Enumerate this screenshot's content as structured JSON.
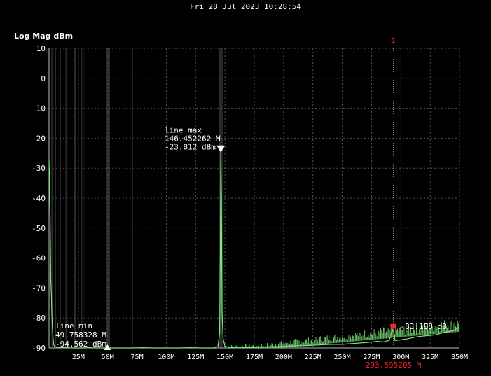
{
  "header": {
    "timestamp": "Fri 28 Jul 2023 10:28:54"
  },
  "chart_data": {
    "type": "line",
    "ylabel": "Log Mag dBm",
    "xlim": [
      0,
      350
    ],
    "ylim": [
      -90,
      10
    ],
    "x_ticks": [
      25,
      50,
      75,
      100,
      125,
      150,
      175,
      200,
      225,
      250,
      275,
      300,
      325,
      350
    ],
    "x_tick_labels": [
      "25M",
      "50M",
      "75M",
      "100M",
      "125M",
      "150M",
      "175M",
      "200M",
      "225M",
      "250M",
      "275M",
      "300M",
      "325M",
      "350M"
    ],
    "y_ticks": [
      10,
      0,
      -10,
      -20,
      -30,
      -40,
      -50,
      -60,
      -70,
      -80,
      -90
    ],
    "grid": true,
    "trace_color": "#7de87d",
    "series": [
      {
        "x": [
          0,
          0.5,
          1,
          1.5,
          2,
          2.5,
          3,
          3.5,
          4,
          5,
          7,
          10,
          15,
          20,
          25,
          30,
          35,
          40,
          45,
          49.76,
          55,
          60,
          70,
          80,
          90,
          100,
          110,
          120,
          130,
          140,
          144,
          145.5,
          146,
          146.45,
          147,
          147.5,
          148.5,
          150,
          155,
          160,
          170,
          180,
          190,
          200,
          210,
          220,
          230,
          240,
          250,
          260,
          270,
          280,
          285,
          290,
          293.6,
          295,
          300,
          305,
          310,
          315,
          320,
          325,
          330,
          335,
          340,
          345,
          350
        ],
        "y": [
          -27,
          -35,
          -50,
          -67,
          -72,
          -80,
          -84,
          -87,
          -89,
          -89.6,
          -89.8,
          -89.9,
          -89.9,
          -90,
          -90,
          -90,
          -89.9,
          -90,
          -90,
          -94.5,
          -90,
          -90,
          -90,
          -89.9,
          -90,
          -90,
          -90,
          -89.9,
          -90,
          -90,
          -89.5,
          -85,
          -60,
          -23.8,
          -40,
          -78,
          -87,
          -89.5,
          -89.8,
          -90,
          -89.8,
          -89.7,
          -89.6,
          -89.5,
          -89.3,
          -89.2,
          -89.0,
          -88.8,
          -88.8,
          -88.5,
          -88.2,
          -87.8,
          -88.0,
          -87.5,
          -83.2,
          -87.5,
          -87.3,
          -87.0,
          -86.6,
          -86.2,
          -86.0,
          -85.8,
          -85.6,
          -85.0,
          -84.6,
          -84.2,
          -83.0
        ]
      }
    ],
    "markers": [
      {
        "label": "1",
        "x": 293.595205,
        "y": -83.188,
        "text": "-83.188 dB",
        "x_readout": "293.595205 M",
        "color": "#ff2020"
      },
      {
        "label": "line max",
        "x": 146.452262,
        "y": -23.812,
        "freq_text": "146.452262 M",
        "level_text": "-23.812 dBm",
        "direction": "down",
        "color": "#ffffff"
      },
      {
        "label": "line min",
        "x": 49.758328,
        "y": -94.562,
        "freq_text": "49.758328 M",
        "level_text": "-94.562 dBm",
        "direction": "up",
        "color": "#ffffff"
      }
    ]
  }
}
